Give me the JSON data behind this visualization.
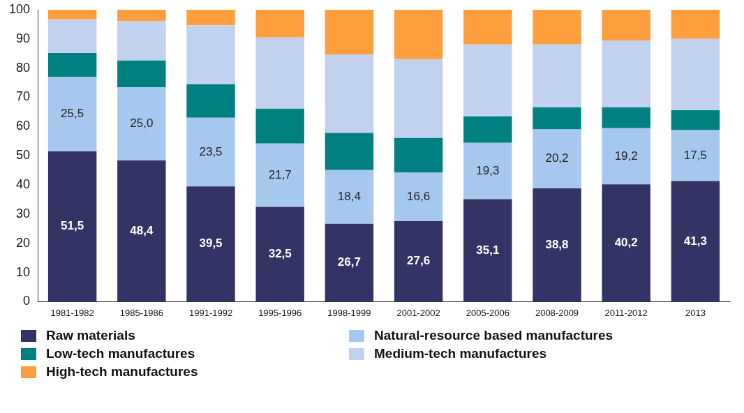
{
  "chart_data": {
    "type": "bar",
    "stacked": true,
    "categories": [
      "1981-1982",
      "1985-1986",
      "1991-1992",
      "1995-1996",
      "1998-1999",
      "2001-2002",
      "2005-2006",
      "2008-2009",
      "2011-2012",
      "2013"
    ],
    "ylim": [
      0,
      100
    ],
    "yticks": [
      0,
      10,
      20,
      30,
      40,
      50,
      60,
      70,
      80,
      90,
      100
    ],
    "grid": false,
    "legend": "bottom",
    "series": [
      {
        "name": "Raw materials",
        "color": "#333366",
        "values": [
          51.5,
          48.4,
          39.5,
          32.5,
          26.7,
          27.6,
          35.1,
          38.8,
          40.2,
          41.3
        ],
        "value_labels": [
          "51,5",
          "48,4",
          "39,5",
          "32,5",
          "26,7",
          "27,6",
          "35,1",
          "38,8",
          "40,2",
          "41,3"
        ]
      },
      {
        "name": "Natural-resource based manufactures",
        "color": "#a6c8ee",
        "values": [
          25.5,
          25.0,
          23.5,
          21.7,
          18.4,
          16.6,
          19.3,
          20.2,
          19.2,
          17.5
        ],
        "value_labels": [
          "25,5",
          "25,0",
          "23,5",
          "21,7",
          "18,4",
          "16,6",
          "19,3",
          "20,2",
          "19,2",
          "17,5"
        ]
      },
      {
        "name": "Low-tech manufactures",
        "color": "#008080",
        "values": [
          8.2,
          9.2,
          11.5,
          11.9,
          12.7,
          11.9,
          9.1,
          7.6,
          7.2,
          6.8
        ]
      },
      {
        "name": "Medium-tech manufactures",
        "color": "#c2d2ee",
        "values": [
          11.5,
          13.6,
          20.2,
          24.4,
          26.9,
          27.0,
          24.6,
          21.5,
          22.9,
          24.4
        ]
      },
      {
        "name": "High-tech manufactures",
        "color": "#ff9e3d",
        "values": [
          3.3,
          3.8,
          5.3,
          9.5,
          15.3,
          16.9,
          11.9,
          11.9,
          10.5,
          10.0
        ]
      }
    ]
  }
}
